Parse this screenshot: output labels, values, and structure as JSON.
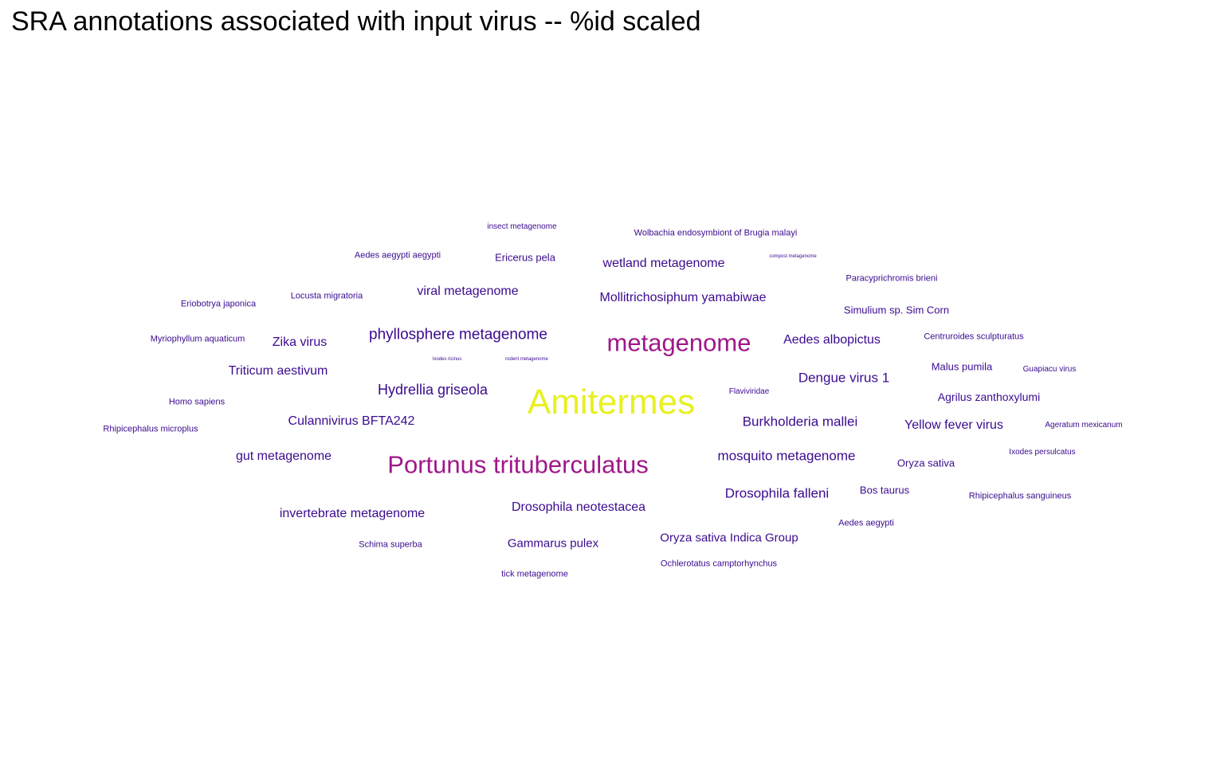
{
  "chart_data": {
    "type": "wordcloud",
    "title": "SRA annotations associated with input virus -- %id scaled",
    "colors": {
      "low": "#2a0a8c",
      "mid": "#9a1a8a",
      "high": "#e8f020"
    },
    "words": [
      {
        "text": "Amitermes",
        "weight": 1.0,
        "color": "#e8f020"
      },
      {
        "text": "Portunus trituberculatus",
        "weight": 0.62,
        "color": "#a0178a"
      },
      {
        "text": "metagenome",
        "weight": 0.6,
        "color": "#a0178a"
      },
      {
        "text": "phyllosphere metagenome",
        "weight": 0.38,
        "color": "#3b0a8f"
      },
      {
        "text": "Hydrellia griseola",
        "weight": 0.35,
        "color": "#3b0a8f"
      },
      {
        "text": "mosquito metagenome",
        "weight": 0.35,
        "color": "#3b0a8f"
      },
      {
        "text": "Burkholderia mallei",
        "weight": 0.35,
        "color": "#3b0a8f"
      },
      {
        "text": "Drosophila falleni",
        "weight": 0.35,
        "color": "#3b0a8f"
      },
      {
        "text": "Dengue virus 1",
        "weight": 0.35,
        "color": "#3b0a8f"
      },
      {
        "text": "Drosophila neotestacea",
        "weight": 0.33,
        "color": "#3b0a8f"
      },
      {
        "text": "Mollitrichosiphum yamabiwae",
        "weight": 0.33,
        "color": "#3b0a8f"
      },
      {
        "text": "Aedes albopictus",
        "weight": 0.33,
        "color": "#3b0a8f"
      },
      {
        "text": "Yellow fever virus",
        "weight": 0.33,
        "color": "#3b0a8f"
      },
      {
        "text": "Culannivirus BFTA242",
        "weight": 0.33,
        "color": "#3b0a8f"
      },
      {
        "text": "Triticum aestivum",
        "weight": 0.33,
        "color": "#3b0a8f"
      },
      {
        "text": "Zika virus",
        "weight": 0.33,
        "color": "#3b0a8f"
      },
      {
        "text": "viral metagenome",
        "weight": 0.33,
        "color": "#3b0a8f"
      },
      {
        "text": "wetland metagenome",
        "weight": 0.33,
        "color": "#3b0a8f"
      },
      {
        "text": "invertebrate metagenome",
        "weight": 0.33,
        "color": "#3b0a8f"
      },
      {
        "text": "gut metagenome",
        "weight": 0.33,
        "color": "#3b0a8f"
      },
      {
        "text": "Gammarus pulex",
        "weight": 0.33,
        "color": "#3b0a8f"
      },
      {
        "text": "Oryza sativa Indica Group",
        "weight": 0.31,
        "color": "#3b0a8f"
      },
      {
        "text": "Agrilus zanthoxylumi",
        "weight": 0.29,
        "color": "#3b0a8f"
      },
      {
        "text": "Simulium sp. Sim Corn",
        "weight": 0.29,
        "color": "#3b0a8f"
      },
      {
        "text": "Oryza sativa",
        "weight": 0.29,
        "color": "#3b0a8f"
      },
      {
        "text": "Malus pumila",
        "weight": 0.29,
        "color": "#3b0a8f"
      },
      {
        "text": "Ericerus pela",
        "weight": 0.29,
        "color": "#3b0a8f"
      },
      {
        "text": "Bos taurus",
        "weight": 0.27,
        "color": "#3b0a8f"
      },
      {
        "text": "Wolbachia endosymbiont of Brugia malayi",
        "weight": 0.26,
        "color": "#3b0a8f"
      },
      {
        "text": "Paracyprichromis brieni",
        "weight": 0.26,
        "color": "#3b0a8f"
      },
      {
        "text": "Centruroides sculpturatus",
        "weight": 0.26,
        "color": "#3b0a8f"
      },
      {
        "text": "Rhipicephalus sanguineus",
        "weight": 0.25,
        "color": "#3b0a8f"
      },
      {
        "text": "Aedes aegypti",
        "weight": 0.25,
        "color": "#3b0a8f"
      },
      {
        "text": "Ochlerotatus camptorhynchus",
        "weight": 0.25,
        "color": "#3b0a8f"
      },
      {
        "text": "tick metagenome",
        "weight": 0.25,
        "color": "#3b0a8f"
      },
      {
        "text": "Schima superba",
        "weight": 0.25,
        "color": "#3b0a8f"
      },
      {
        "text": "Homo sapiens",
        "weight": 0.25,
        "color": "#3b0a8f"
      },
      {
        "text": "Rhipicephalus microplus",
        "weight": 0.25,
        "color": "#3b0a8f"
      },
      {
        "text": "Myriophyllum aquaticum",
        "weight": 0.25,
        "color": "#3b0a8f"
      },
      {
        "text": "Eriobotrya japonica",
        "weight": 0.25,
        "color": "#3b0a8f"
      },
      {
        "text": "Locusta migratoria",
        "weight": 0.25,
        "color": "#3b0a8f"
      },
      {
        "text": "Aedes aegypti aegypti",
        "weight": 0.25,
        "color": "#3b0a8f"
      },
      {
        "text": "insect metagenome",
        "weight": 0.24,
        "color": "#3b0a8f"
      },
      {
        "text": "Flaviviridae",
        "weight": 0.24,
        "color": "#3b0a8f"
      },
      {
        "text": "Guapiacu virus",
        "weight": 0.24,
        "color": "#3b0a8f"
      },
      {
        "text": "Ageratum mexicanum",
        "weight": 0.24,
        "color": "#3b0a8f"
      },
      {
        "text": "Ixodes persulcatus",
        "weight": 0.24,
        "color": "#3b0a8f"
      },
      {
        "text": "Ixodes ricinus",
        "weight": 0.15,
        "color": "#3b0a8f"
      },
      {
        "text": "rodent metagenome",
        "weight": 0.15,
        "color": "#3b0a8f"
      },
      {
        "text": "compost metagenome",
        "weight": 0.13,
        "color": "#3b0a8f"
      }
    ]
  }
}
